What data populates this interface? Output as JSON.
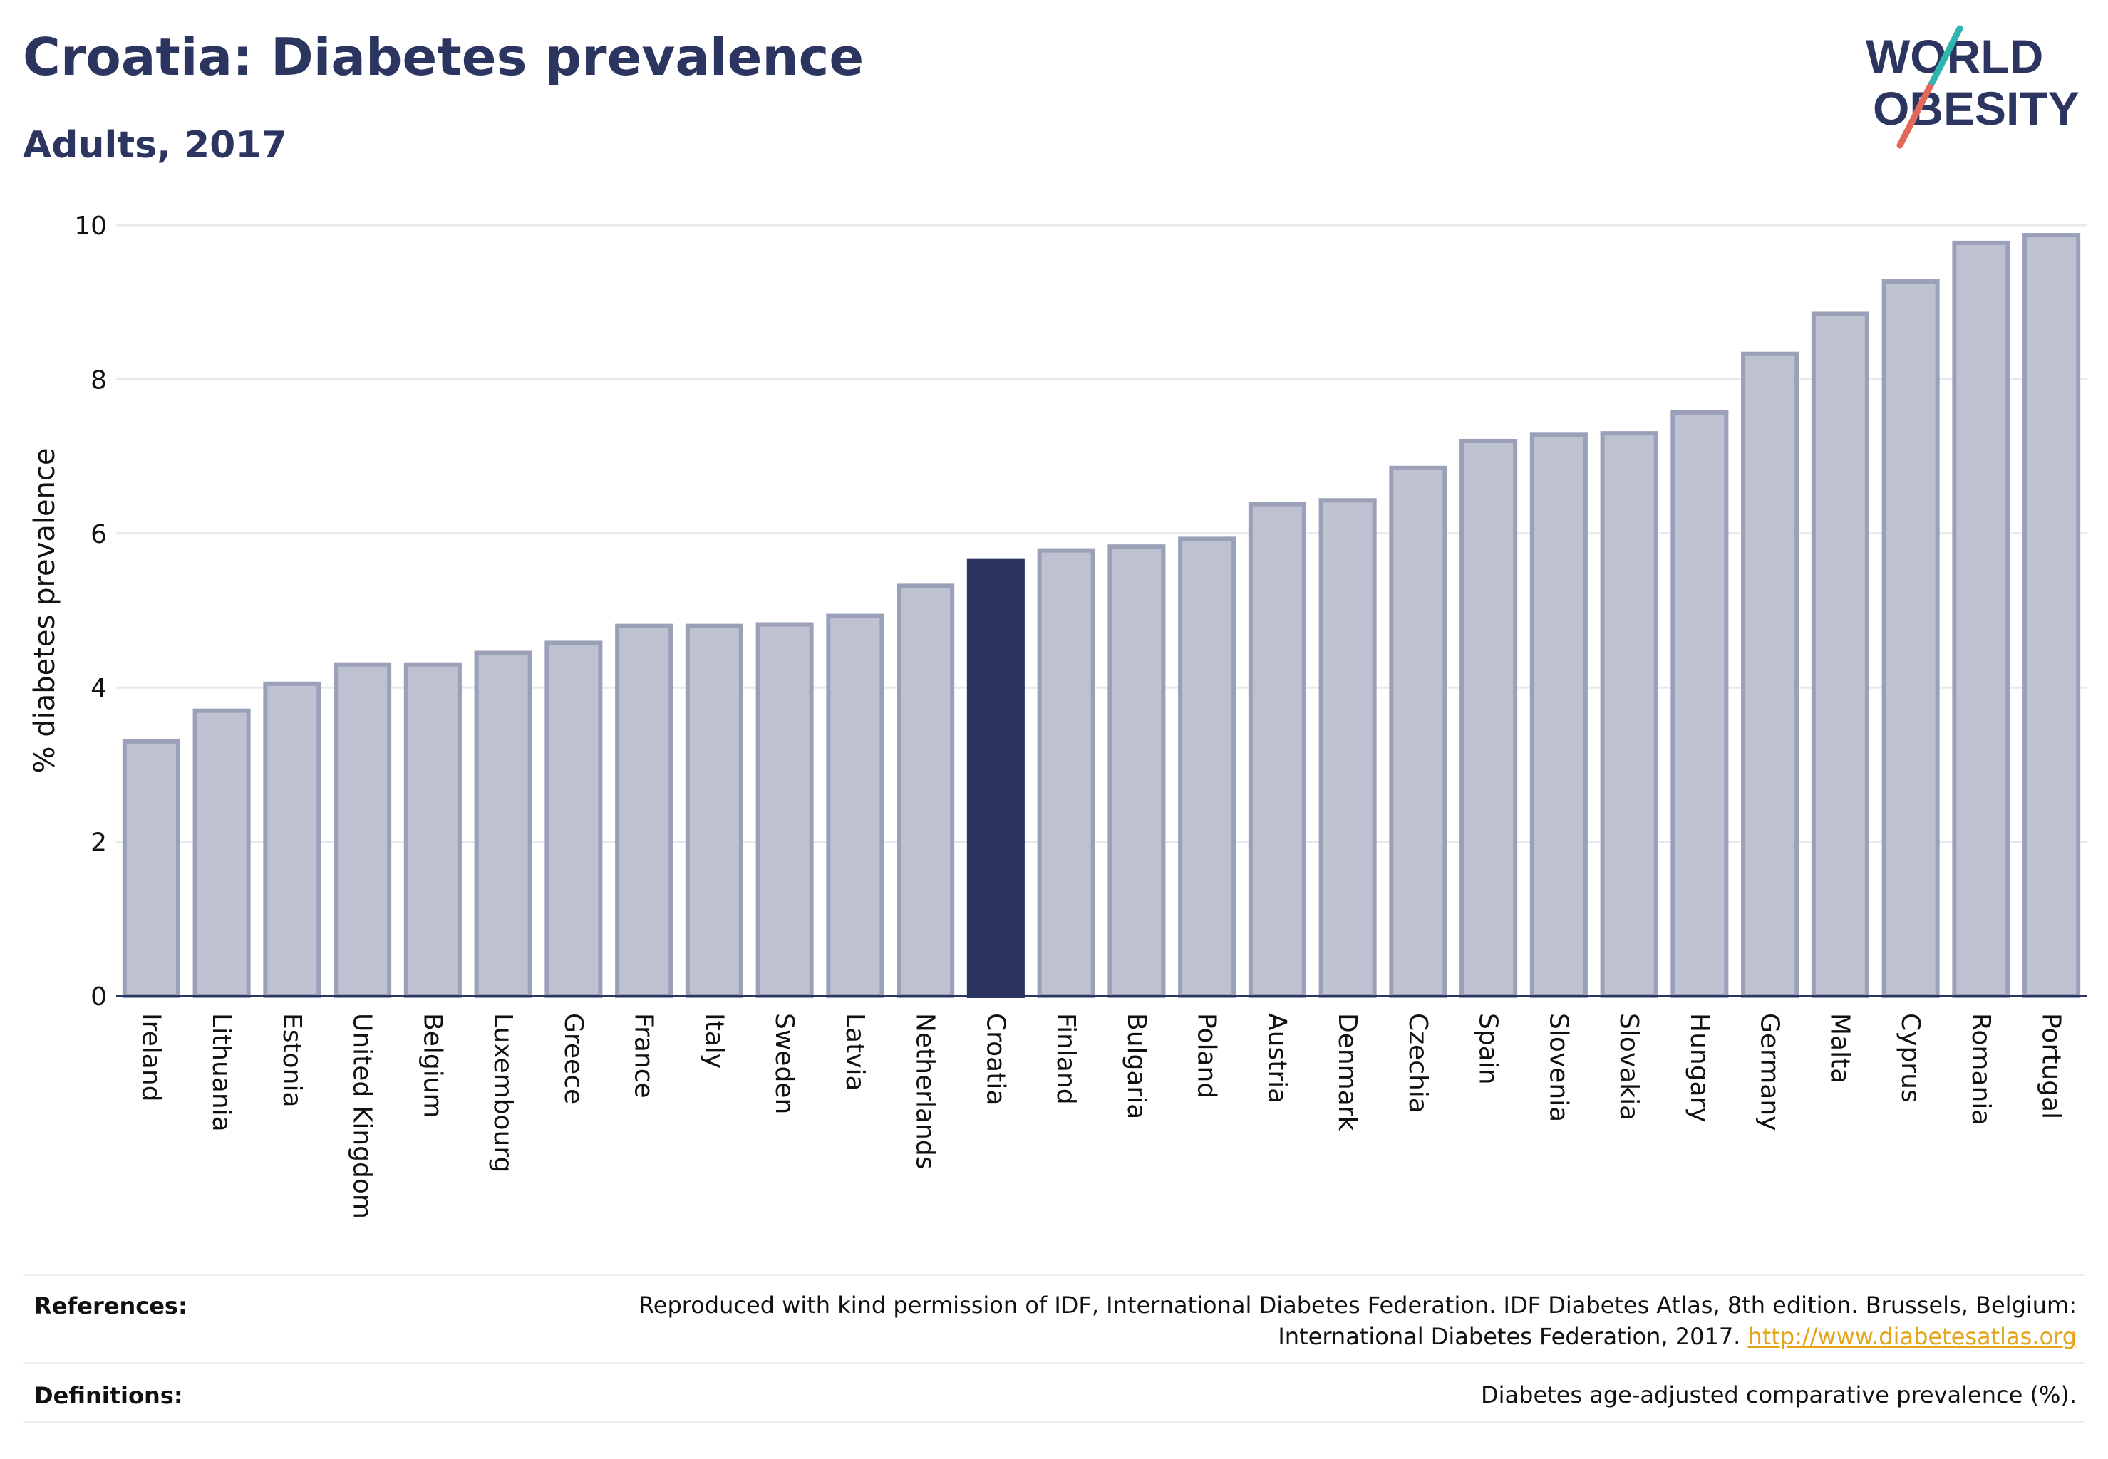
{
  "header": {
    "title": "Croatia: Diabetes prevalence",
    "subtitle": "Adults, 2017"
  },
  "logo": {
    "line1": "WORLD",
    "line2": "OBESITY",
    "slash_colors": [
      "#2fb6b0",
      "#e2685a"
    ]
  },
  "chart_data": {
    "type": "bar",
    "categories": [
      "Ireland",
      "Lithuania",
      "Estonia",
      "United Kingdom",
      "Belgium",
      "Luxembourg",
      "Greece",
      "France",
      "Italy",
      "Sweden",
      "Latvia",
      "Netherlands",
      "Croatia",
      "Finland",
      "Bulgaria",
      "Poland",
      "Austria",
      "Denmark",
      "Czechia",
      "Spain",
      "Slovenia",
      "Slovakia",
      "Hungary",
      "Germany",
      "Malta",
      "Cyprus",
      "Romania",
      "Portugal"
    ],
    "values": [
      3.3,
      3.7,
      4.05,
      4.3,
      4.3,
      4.45,
      4.58,
      4.8,
      4.8,
      4.82,
      4.93,
      5.32,
      5.65,
      5.78,
      5.83,
      5.93,
      6.38,
      6.43,
      6.85,
      7.2,
      7.28,
      7.3,
      7.57,
      8.33,
      8.85,
      9.27,
      9.77,
      9.87
    ],
    "highlight": "Croatia",
    "title": "Croatia: Diabetes prevalence",
    "subtitle": "Adults, 2017",
    "xlabel": "",
    "ylabel": "% diabetes prevalence",
    "ylim": [
      0,
      10
    ],
    "yticks": [
      0,
      2,
      4,
      6,
      8,
      10
    ],
    "grid": true,
    "colors": {
      "bar": "#bec2d0",
      "bar_border": "#9aa0b8",
      "highlight": "#2b3560",
      "grid": "#e8e9ee",
      "axis": "#2b3560"
    }
  },
  "footer": {
    "references_label": "References:",
    "references_text_line1": "Reproduced with kind permission of IDF, International Diabetes Federation. IDF Diabetes Atlas, 8th edition. Brussels, Belgium:",
    "references_text_line2": "International Diabetes Federation, 2017.",
    "references_link": "http://www.diabetesatlas.org",
    "definitions_label": "Definitions:",
    "definitions_text": "Diabetes age-adjusted comparative prevalence (%)."
  }
}
